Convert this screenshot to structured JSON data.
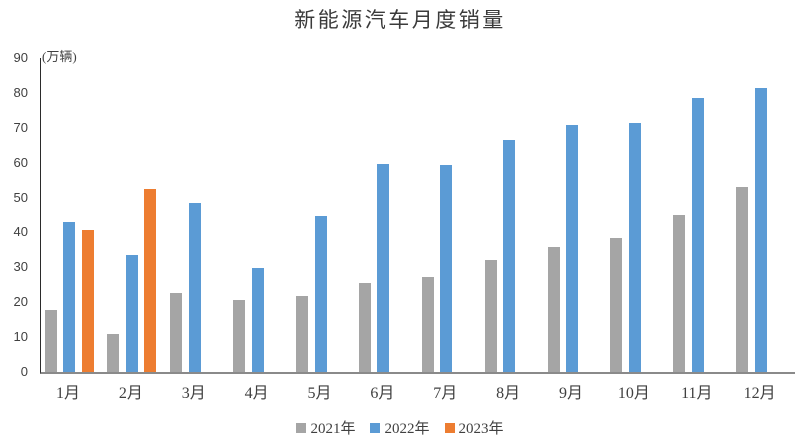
{
  "title": "新能源汽车月度销量",
  "chart_data": {
    "type": "bar",
    "title": "新能源汽车月度销量",
    "xlabel": "",
    "ylabel": "(万辆)",
    "unit_label": "(万辆)",
    "categories": [
      "1月",
      "2月",
      "3月",
      "4月",
      "5月",
      "6月",
      "7月",
      "8月",
      "9月",
      "10月",
      "11月",
      "12月"
    ],
    "series": [
      {
        "name": "2021年",
        "color": "#A5A5A5",
        "values": [
          17.9,
          11.0,
          22.6,
          20.6,
          21.7,
          25.6,
          27.1,
          32.1,
          35.7,
          38.3,
          45.0,
          53.1
        ]
      },
      {
        "name": "2022年",
        "color": "#5B9BD5",
        "values": [
          43.1,
          33.4,
          48.4,
          29.9,
          44.7,
          59.6,
          59.3,
          66.6,
          70.8,
          71.4,
          78.6,
          81.4
        ]
      },
      {
        "name": "2023年",
        "color": "#ED7D31",
        "values": [
          40.8,
          52.5,
          null,
          null,
          null,
          null,
          null,
          null,
          null,
          null,
          null,
          null
        ]
      }
    ],
    "ylim": [
      0,
      90
    ],
    "yticks": [
      0,
      10,
      20,
      30,
      40,
      50,
      60,
      70,
      80,
      90
    ],
    "grid": false,
    "legend_position": "bottom"
  },
  "colors": {
    "series_2021": "#A5A5A5",
    "series_2022": "#5B9BD5",
    "series_2023": "#ED7D31",
    "axis_line": "#8a8a8a",
    "text": "#404040",
    "background": "#ffffff"
  }
}
